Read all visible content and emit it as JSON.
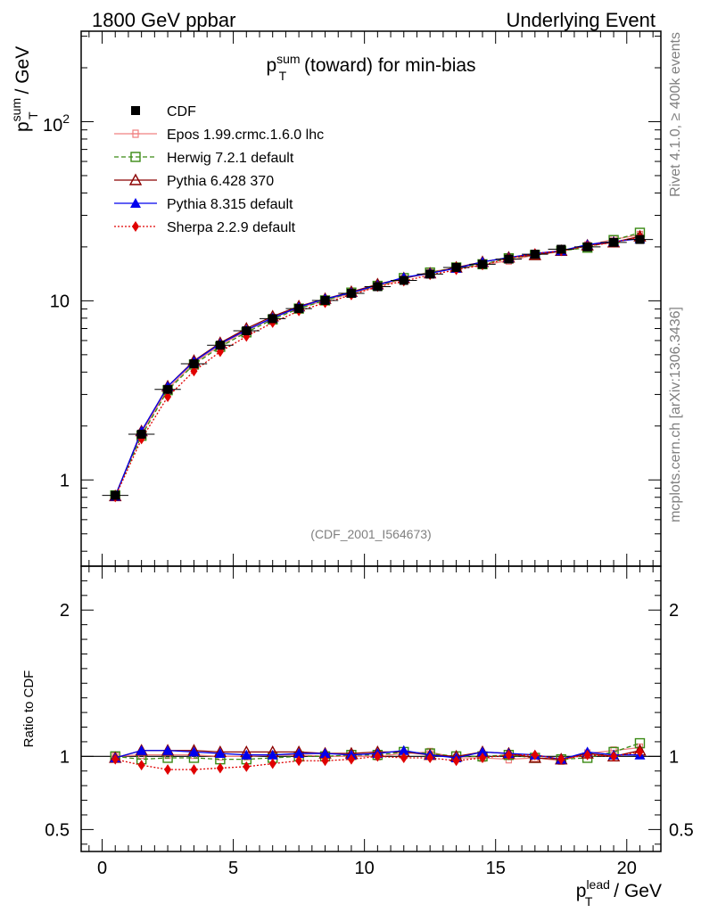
{
  "header": {
    "left": "1800 GeV ppbar",
    "right": "Underlying Event"
  },
  "side": {
    "rivet": "Rivet 4.1.0, ≥ 400k events",
    "mcplots": "mcplots.cern.ch [arXiv:1306.3436]"
  },
  "colors": {
    "CDF": "#000000",
    "Epos": "#f08080",
    "Herwig": "#3a8a14",
    "Pythia6": "#8b0000",
    "Pythia8": "#0000ee",
    "Sherpa": "#e00000"
  },
  "chart_data": {
    "type": "scatter",
    "title_main": "p",
    "title_sup": "sum",
    "title_sub": "T",
    "title_rest": " (toward) for min-bias",
    "ylabel_main": "p",
    "ylabel_sup": "sum",
    "ylabel_sub": "T",
    "ylabel_rest": " / GeV",
    "xlabel_main": "p",
    "xlabel_sup": "lead",
    "xlabel_sub": "T",
    "xlabel_rest": " / GeV",
    "ratio_ylabel": "Ratio to CDF",
    "analysis_id": "(CDF_2001_I564673)",
    "xlim": [
      -0.8,
      21.3
    ],
    "ylim_log": [
      0.33,
      320
    ],
    "ratio_ylim": [
      0.35,
      2.3
    ],
    "x_ticks": [
      "0",
      "5",
      "10",
      "15",
      "20"
    ],
    "y_ticks": [
      "1",
      "10"
    ],
    "y_tick_100_base": "10",
    "y_tick_100_exp": "2",
    "ratio_ticks": [
      "0.5",
      "1",
      "2"
    ],
    "x": [
      0.5,
      1.5,
      2.5,
      3.5,
      4.5,
      5.5,
      6.5,
      7.5,
      8.5,
      9.5,
      10.5,
      11.5,
      12.5,
      13.5,
      14.5,
      15.5,
      16.5,
      17.5,
      18.5,
      19.5,
      20.5
    ],
    "cdf": [
      0.82,
      1.8,
      3.2,
      4.45,
      5.65,
      6.8,
      7.95,
      9.05,
      10.05,
      11.0,
      12.0,
      13.0,
      14.1,
      15.35,
      16.0,
      17.1,
      18.2,
      19.4,
      20.0,
      21.2,
      22.0
    ],
    "series": [
      {
        "name": "CDF",
        "key": "CDF",
        "marker": "square",
        "line": "none",
        "ratio": [
          1,
          1,
          1,
          1,
          1,
          1,
          1,
          1,
          1,
          1,
          1,
          1,
          1,
          1,
          1,
          1,
          1,
          1,
          1,
          1,
          1
        ]
      },
      {
        "name": "Epos 1.99.crmc.1.6.0 lhc",
        "key": "Epos",
        "marker": "cross",
        "line": "solid",
        "ratio": [
          1.0,
          1.01,
          1.01,
          1.01,
          1.0,
          1.0,
          1.01,
          1.01,
          1.0,
          1.0,
          1.0,
          1.02,
          1.03,
          0.99,
          0.99,
          0.98,
          0.99,
          0.97,
          1.02,
          1.04,
          1.06
        ]
      },
      {
        "name": "Herwig 7.2.1 default",
        "key": "Herwig",
        "marker": "square-open",
        "line": "dashed",
        "ratio": [
          1.0,
          0.98,
          0.99,
          0.99,
          0.98,
          0.98,
          0.99,
          1.0,
          1.0,
          1.01,
          1.01,
          1.03,
          1.02,
          1.0,
          1.0,
          1.01,
          0.99,
          0.98,
          0.99,
          1.03,
          1.09
        ]
      },
      {
        "name": "Pythia 6.428 370",
        "key": "Pythia6",
        "marker": "triangle-open",
        "line": "solid",
        "ratio": [
          0.99,
          1.04,
          1.04,
          1.04,
          1.03,
          1.03,
          1.03,
          1.03,
          1.02,
          1.02,
          1.03,
          1.03,
          1.01,
          1.0,
          1.03,
          1.02,
          0.99,
          0.98,
          1.02,
          1.0,
          1.04
        ]
      },
      {
        "name": "Pythia 8.315 default",
        "key": "Pythia8",
        "marker": "triangle",
        "line": "solid",
        "ratio": [
          0.99,
          1.04,
          1.04,
          1.03,
          1.02,
          1.01,
          1.01,
          1.02,
          1.02,
          1.01,
          1.02,
          1.04,
          1.01,
          0.99,
          1.03,
          1.02,
          1.01,
          0.98,
          1.03,
          1.01,
          1.01
        ]
      },
      {
        "name": "Sherpa 2.2.9 default",
        "key": "Sherpa",
        "marker": "diamond",
        "line": "dotted",
        "ratio": [
          0.98,
          0.94,
          0.91,
          0.91,
          0.92,
          0.93,
          0.95,
          0.97,
          0.97,
          0.98,
          1.0,
          0.99,
          0.99,
          0.97,
          0.99,
          1.01,
          1.01,
          0.98,
          1.01,
          1.0,
          1.03
        ]
      }
    ]
  }
}
